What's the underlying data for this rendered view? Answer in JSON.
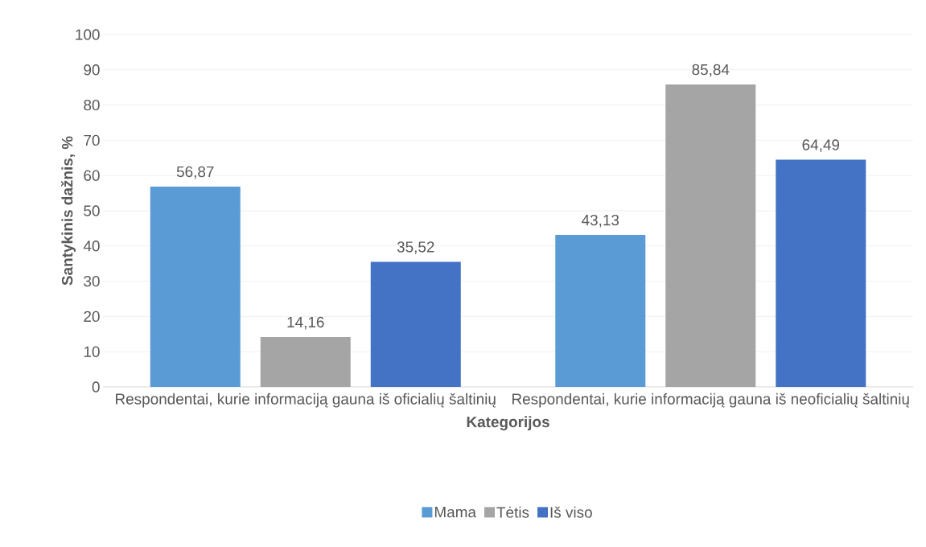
{
  "chart_data": {
    "type": "bar",
    "xlabel": "Kategorijos",
    "ylabel": "Santykinis dažnis, %",
    "categories": [
      "Respondentai, kurie informaciją gauna iš oficialių šaltinių",
      "Respondentai, kurie informaciją gauna iš neoficialių šaltinių"
    ],
    "series": [
      {
        "name": "Mama",
        "color": "#5b9bd5",
        "values": [
          56.87,
          43.13
        ],
        "value_labels": [
          "56,87",
          "43,13"
        ]
      },
      {
        "name": "Tėtis",
        "color": "#a5a5a5",
        "values": [
          14.16,
          85.84
        ],
        "value_labels": [
          "14,16",
          "85,84"
        ]
      },
      {
        "name": "Iš viso",
        "color": "#4472c4",
        "values": [
          35.52,
          64.49
        ],
        "value_labels": [
          "35,52",
          "64,49"
        ]
      }
    ],
    "ylim": [
      0,
      100
    ],
    "yticks": [
      0,
      10,
      20,
      30,
      40,
      50,
      60,
      70,
      80,
      90,
      100
    ],
    "grid": "y",
    "legend": "bottom"
  }
}
